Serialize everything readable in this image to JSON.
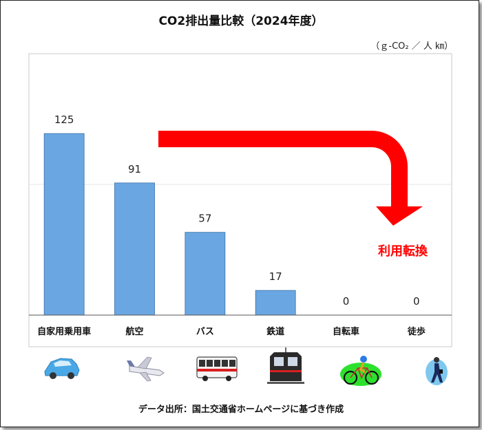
{
  "chart_data": {
    "type": "bar",
    "title": "CO2排出量比較（2024年度）",
    "unit": "（ｇ-CO₂ ／ 人 ㎞）",
    "categories": [
      "自家用乗用車",
      "航空",
      "バス",
      "鉄道",
      "自転車",
      "徒歩"
    ],
    "values": [
      125,
      91,
      57,
      17,
      0,
      0
    ],
    "value_labels": [
      "125",
      "91",
      "57",
      "17",
      "0",
      "0"
    ],
    "ylim": [
      0,
      180
    ],
    "gridlines": [
      90
    ],
    "grid": true,
    "bar_color": "#6aa7e2",
    "annotation": {
      "text": "利用転換",
      "color": "#ff0000"
    }
  },
  "icons": [
    "car-icon",
    "airplane-icon",
    "bus-icon",
    "train-icon",
    "bicycle-icon",
    "walking-person-icon"
  ],
  "source": "データ出所：国土交通省ホームページに基づき作成"
}
